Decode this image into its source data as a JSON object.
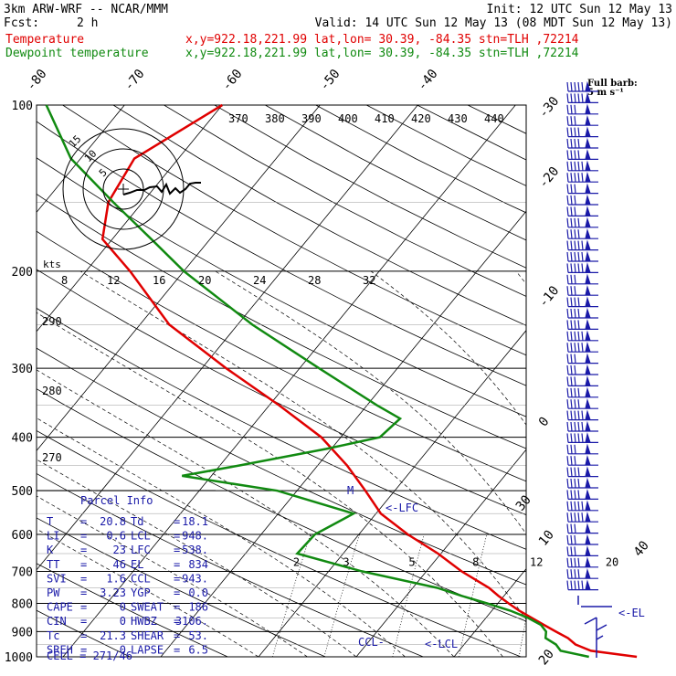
{
  "header": {
    "title": "3km ARW-WRF -- NCAR/MMM",
    "init": "Init: 12 UTC Sun 12 May 13",
    "fcst_label": "Fcst:",
    "fcst_value": "2 h",
    "valid": "Valid: 14 UTC Sun 12 May 13 (08 MDT Sun 12 May 13)",
    "temp_label": "Temperature",
    "temp_info": "x,y=922.18,221.99   lat,lon= 30.39, -84.35  stn=TLH ,72214",
    "dew_label": "Dewpoint temperature",
    "dew_info": "x,y=922.18,221.99   lat,lon= 30.39, -84.35  stn=TLH ,72214",
    "barb_key1": "Full barb:",
    "barb_key2": "5 m s⁻¹"
  },
  "colors": {
    "temperature": "#e00000",
    "dewpoint": "#118a11",
    "annotation": "#1a1aa8",
    "grid": "#000000"
  },
  "chart_data": {
    "type": "line",
    "title": "",
    "ylabel": "",
    "pressure_ticks": [
      100,
      200,
      300,
      400,
      500,
      600,
      700,
      800,
      900,
      1000
    ],
    "isotherm_labels": [
      "-80",
      "-70",
      "-60",
      "-50",
      "-40",
      "-30",
      "-20",
      "-10",
      "0",
      "10",
      "20",
      "30",
      "40"
    ],
    "dry_adiabat_labels": [
      "370",
      "380",
      "390",
      "400",
      "410",
      "420",
      "430",
      "440"
    ],
    "theta_labels_left": [
      "290",
      "280",
      "270"
    ],
    "mixing_ratio_labels": [
      "2",
      "3",
      "5",
      "8",
      "12",
      "20"
    ],
    "wind_speed_scale_unit": "kts",
    "wind_speed_labels": [
      "8",
      "12",
      "16",
      "20",
      "24",
      "28",
      "32"
    ],
    "hodograph_rings": [
      "15",
      "10",
      "5"
    ],
    "series": [
      {
        "name": "Temperature",
        "p": [
          1000,
          975,
          950,
          925,
          900,
          875,
          850,
          825,
          800,
          775,
          750,
          700,
          650,
          600,
          550,
          500,
          450,
          400,
          350,
          300,
          250,
          200,
          175,
          150,
          125,
          100
        ],
        "t": [
          28.7,
          23.5,
          21.4,
          20.1,
          18.3,
          16.5,
          14.7,
          12.8,
          11.1,
          9.4,
          7.8,
          3.6,
          -0.3,
          -5.0,
          -9.5,
          -13.0,
          -17.0,
          -22.0,
          -29.0,
          -37.5,
          -47.0,
          -55.5,
          -61.0,
          -63.5,
          -64.5,
          -60.0
        ]
      },
      {
        "name": "Dewpoint temperature",
        "p": [
          1000,
          975,
          950,
          925,
          900,
          875,
          850,
          825,
          800,
          775,
          750,
          700,
          650,
          600,
          550,
          500,
          470,
          450,
          420,
          400,
          370,
          350,
          300,
          250,
          200,
          175,
          150,
          125,
          100
        ],
        "t": [
          23.8,
          20.4,
          19.4,
          17.8,
          17.3,
          16.2,
          14.3,
          11.9,
          8.9,
          5.6,
          2.5,
          -6.6,
          -14.7,
          -14.5,
          -12.3,
          -22.0,
          -33.0,
          -28.0,
          -20.5,
          -16.0,
          -15.5,
          -19.0,
          -28.0,
          -38.5,
          -50.0,
          -56.0,
          -63.0,
          -71.0,
          -78.0
        ]
      }
    ],
    "annotations": [
      "<-LFC",
      "<-LCL",
      "CCL-",
      "<-EL",
      "M"
    ]
  },
  "parcel_info": {
    "title": "Parcel Info",
    "rows": [
      {
        "l1": "T",
        "v1": "20.8",
        "l2": "Td",
        "v2": "18.1"
      },
      {
        "l1": "LI",
        "v1": "0.6",
        "l2": "LCL",
        "v2": "948."
      },
      {
        "l1": "K",
        "v1": "23",
        "l2": "LFC",
        "v2": "538."
      },
      {
        "l1": "TT",
        "v1": "46",
        "l2": "EL",
        "v2": "834"
      },
      {
        "l1": "SVI",
        "v1": "1.6",
        "l2": "CCL",
        "v2": "943."
      },
      {
        "l1": "PW",
        "v1": "3.23",
        "l2": "YGP",
        "v2": "0.0"
      },
      {
        "l1": "CAPE",
        "v1": "0",
        "l2": "SWEAT",
        "v2": "186"
      },
      {
        "l1": "CIN",
        "v1": "0",
        "l2": "HWBZ",
        "v2": "3106."
      },
      {
        "l1": "Tc",
        "v1": "21.3",
        "l2": "SHEAR",
        "v2": "53."
      },
      {
        "l1": "SREH",
        "v1": "0",
        "l2": "LAPSE",
        "v2": "6.5"
      }
    ],
    "cell": "CELL = 271/46"
  }
}
